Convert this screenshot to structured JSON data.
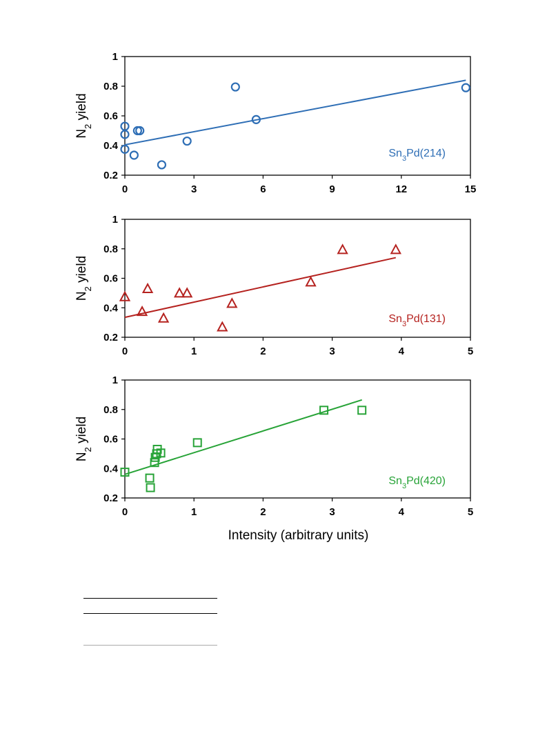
{
  "chart_data": [
    {
      "type": "scatter",
      "color": "#2e6eb5",
      "marker": "circle",
      "series_label": {
        "name": "Sn",
        "sub": "3",
        "rest": "Pd(214)"
      },
      "ylabel": {
        "name": "N",
        "sub": "2",
        "rest": " yield"
      },
      "xlabel": "",
      "xlim": [
        0,
        15
      ],
      "ylim": [
        0.2,
        1
      ],
      "xticks": [
        0,
        3,
        6,
        9,
        12,
        15
      ],
      "yticks": [
        0.2,
        0.4,
        0.6,
        0.8,
        1
      ],
      "xtick_labels": [
        "0",
        "3",
        "6",
        "9",
        "12",
        "15"
      ],
      "ytick_labels": [
        "0.2",
        "0.4",
        "0.6",
        "0.8",
        "1"
      ],
      "points": [
        [
          0.0,
          0.53
        ],
        [
          0.0,
          0.475
        ],
        [
          0.0,
          0.375
        ],
        [
          0.4,
          0.335
        ],
        [
          0.55,
          0.5
        ],
        [
          0.65,
          0.5
        ],
        [
          1.6,
          0.27
        ],
        [
          2.7,
          0.43
        ],
        [
          4.8,
          0.795
        ],
        [
          5.7,
          0.575
        ],
        [
          14.8,
          0.79
        ]
      ],
      "trendline": [
        [
          0.0,
          0.405
        ],
        [
          14.8,
          0.84
        ]
      ]
    },
    {
      "type": "scatter",
      "color": "#b5221f",
      "marker": "triangle",
      "series_label": {
        "name": "Sn",
        "sub": "3",
        "rest": "Pd(131)"
      },
      "ylabel": {
        "name": "N",
        "sub": "2",
        "rest": " yield"
      },
      "xlabel": "",
      "xlim": [
        0,
        5
      ],
      "ylim": [
        0.2,
        1
      ],
      "xticks": [
        0,
        1,
        2,
        3,
        4,
        5
      ],
      "yticks": [
        0.2,
        0.4,
        0.6,
        0.8,
        1
      ],
      "xtick_labels": [
        "0",
        "1",
        "2",
        "3",
        "4",
        "5"
      ],
      "ytick_labels": [
        "0.2",
        "0.4",
        "0.6",
        "0.8",
        "1"
      ],
      "points": [
        [
          0.0,
          0.475
        ],
        [
          0.25,
          0.375
        ],
        [
          0.33,
          0.53
        ],
        [
          0.56,
          0.33
        ],
        [
          0.79,
          0.5
        ],
        [
          0.9,
          0.5
        ],
        [
          1.41,
          0.27
        ],
        [
          1.55,
          0.43
        ],
        [
          2.69,
          0.575
        ],
        [
          3.15,
          0.795
        ],
        [
          3.92,
          0.795
        ]
      ],
      "trendline": [
        [
          0.0,
          0.335
        ],
        [
          3.92,
          0.74
        ]
      ]
    },
    {
      "type": "scatter",
      "color": "#27a337",
      "marker": "square",
      "series_label": {
        "name": "Sn",
        "sub": "3",
        "rest": "Pd(420)"
      },
      "ylabel": {
        "name": "N",
        "sub": "2",
        "rest": " yield"
      },
      "xlabel": "Intensity (arbitrary units)",
      "xlim": [
        0,
        5
      ],
      "ylim": [
        0.2,
        1
      ],
      "xticks": [
        0,
        1,
        2,
        3,
        4,
        5
      ],
      "yticks": [
        0.2,
        0.4,
        0.6,
        0.8,
        1
      ],
      "xtick_labels": [
        "0",
        "1",
        "2",
        "3",
        "4",
        "5"
      ],
      "ytick_labels": [
        "0.2",
        "0.4",
        "0.6",
        "0.8",
        "1"
      ],
      "points": [
        [
          0.0,
          0.375
        ],
        [
          0.36,
          0.335
        ],
        [
          0.37,
          0.27
        ],
        [
          0.43,
          0.44
        ],
        [
          0.44,
          0.475
        ],
        [
          0.46,
          0.5
        ],
        [
          0.47,
          0.53
        ],
        [
          0.52,
          0.505
        ],
        [
          1.05,
          0.575
        ],
        [
          2.88,
          0.795
        ],
        [
          3.43,
          0.795
        ]
      ],
      "trendline": [
        [
          0.0,
          0.36
        ],
        [
          3.43,
          0.865
        ]
      ]
    }
  ],
  "rules": [
    {
      "color": "#000000"
    },
    {
      "color": "#000000"
    },
    {
      "color": "#aaaaaa"
    }
  ]
}
